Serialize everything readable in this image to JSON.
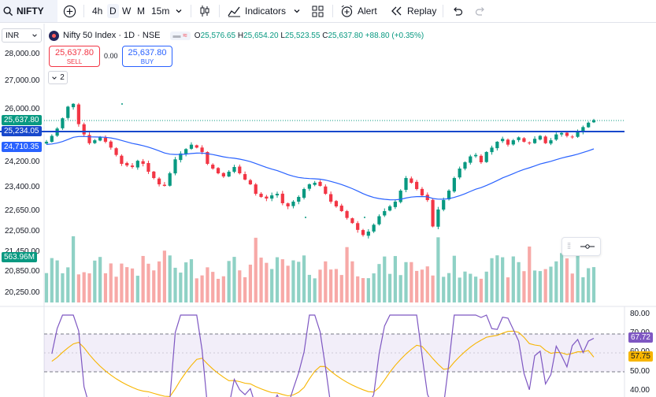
{
  "toolbar": {
    "symbol": "NIFTY",
    "timeframes": [
      "4h",
      "D",
      "W",
      "M",
      "15m"
    ],
    "active_timeframe": "D",
    "indicators_label": "Indicators",
    "alert_label": "Alert",
    "replay_label": "Replay"
  },
  "currency": "INR",
  "legend": {
    "title": "Nifty 50 Index · 1D · NSE",
    "open_label": "O",
    "open": "25,576.65",
    "high_label": "H",
    "high": "25,654.20",
    "low_label": "L",
    "low": "25,523.55",
    "close_label": "C",
    "close": "25,637.80",
    "change": "+88.80 (+0.35%)"
  },
  "trade": {
    "sell_price": "25,637.80",
    "sell_label": "SELL",
    "spread": "0.00",
    "buy_price": "25,637.80",
    "buy_label": "BUY"
  },
  "collapse_count": "2",
  "price_axis": [
    "28,000.00",
    "27,000.00",
    "26,000.00",
    "24,200.00",
    "23,400.00",
    "22,650.00",
    "22,050.00",
    "21,450.00",
    "20,850.00",
    "20,250.00"
  ],
  "tags": {
    "last_price": "25,637.80",
    "line_price": "25,234.05",
    "ma_price": "24,710.35",
    "volume": "563.96M"
  },
  "rsi_axis": [
    "80.00",
    "70.00",
    "60.00",
    "50.00",
    "40.00"
  ],
  "rsi_tags": {
    "rsi": "67.72",
    "rsi_ma": "57.75"
  },
  "colors": {
    "up": "#089981",
    "down": "#f23645",
    "ma": "#2962ff",
    "hline": "#1848cc",
    "rsi": "#7e57c2",
    "rsi_ma": "#f7b500"
  },
  "chart_data": {
    "type": "candlestick",
    "symbol": "Nifty 50 Index",
    "interval": "1D",
    "exchange": "NSE",
    "y_axis_price_range": [
      20000,
      28300
    ],
    "horizontal_line": 25234.05,
    "last_close": 25637.8,
    "close_path": [
      24900,
      25100,
      25350,
      25700,
      26100,
      26200,
      25500,
      25150,
      24850,
      24950,
      25050,
      24900,
      24700,
      24450,
      24150,
      24100,
      24050,
      24250,
      24150,
      23900,
      23700,
      23500,
      23450,
      23850,
      24300,
      24500,
      24650,
      24800,
      24700,
      24550,
      24150,
      24000,
      23850,
      23750,
      23900,
      24050,
      23850,
      23650,
      23500,
      23200,
      23100,
      23050,
      23150,
      23200,
      22900,
      22800,
      22950,
      23100,
      23350,
      23500,
      23550,
      23450,
      23200,
      22950,
      22800,
      22650,
      22450,
      22300,
      22100,
      21950,
      22050,
      22250,
      22500,
      22650,
      22800,
      22950,
      23300,
      23700,
      23550,
      23350,
      23150,
      23000,
      22200,
      22700,
      23000,
      23300,
      23700,
      24000,
      24200,
      24400,
      24450,
      24200,
      24550,
      24700,
      24900,
      25000,
      24800,
      24950,
      25050,
      24900,
      24850,
      25000,
      25100,
      24850,
      24950,
      25150,
      25200,
      25100,
      25050,
      25250,
      25400,
      25550,
      25640
    ],
    "ma_start": 24800,
    "volume_last": "563.96M",
    "rsi_range": [
      30,
      80
    ],
    "rsi_bands": [
      70,
      50
    ],
    "rsi_last": 67.72,
    "rsi_ma_last": 57.75
  }
}
